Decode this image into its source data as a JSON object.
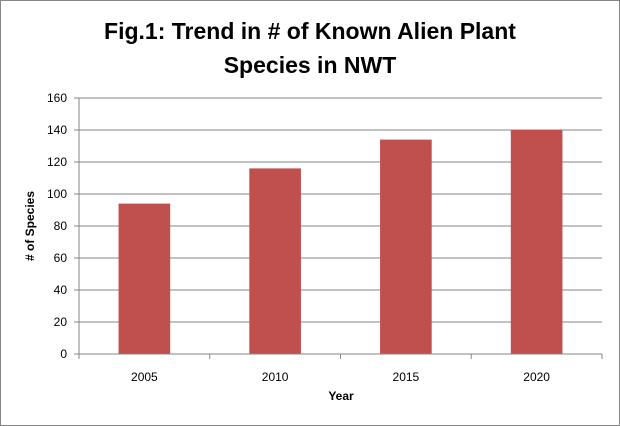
{
  "chart_data": {
    "type": "bar",
    "title_lines": [
      "Fig.1: Trend in # of Known Alien Plant",
      "Species in NWT"
    ],
    "categories": [
      "2005",
      "2010",
      "2015",
      "2020"
    ],
    "values": [
      94,
      116,
      134,
      140
    ],
    "xlabel": "Year",
    "ylabel": "# of Species",
    "ylim": [
      0,
      160
    ],
    "yticks": [
      0,
      20,
      40,
      60,
      80,
      100,
      120,
      140,
      160
    ],
    "grid": true,
    "legend": "none",
    "bar_color": "#c0504d",
    "grid_color": "#868686"
  }
}
